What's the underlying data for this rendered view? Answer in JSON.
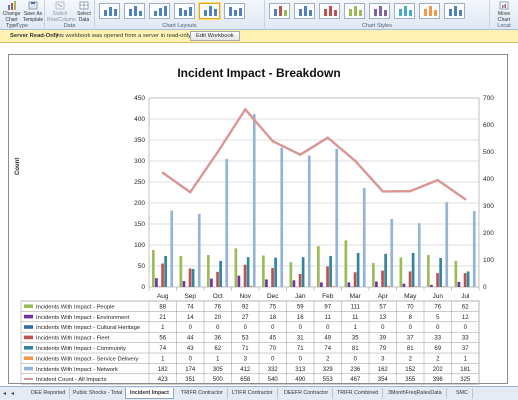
{
  "ribbon": {
    "buttons": {
      "change_chart_type": "Change Chart Type",
      "save_as_template": "Save As Template",
      "switch_row_column": "Switch Row/Column",
      "select_data": "Select Data",
      "move_chart": "Move Chart"
    },
    "groups": {
      "type": "Type",
      "data": "Data",
      "chart_layouts": "Chart Layouts",
      "chart_styles": "Chart Styles",
      "location": "Locat"
    }
  },
  "notice": {
    "title": "Server Read-Only",
    "text": "This workbook was opened from a server in read-only mode.",
    "button": "Edit Workbook"
  },
  "chart_data": {
    "type": "bar",
    "title": "Incident Impact - Breakdown",
    "ylabel": "Count",
    "ylim": [
      0,
      450
    ],
    "y2lim": [
      0,
      700
    ],
    "yticks": [
      "0",
      "50",
      "100",
      "150",
      "200",
      "250",
      "300",
      "350",
      "400",
      "450"
    ],
    "y2ticks": [
      "0",
      "100",
      "200",
      "300",
      "400",
      "500",
      "600",
      "700"
    ],
    "categories": [
      "Aug",
      "Sep",
      "Oct",
      "Nov",
      "Dec",
      "Jan",
      "Feb",
      "Mar",
      "Apr",
      "May",
      "Jun",
      "Jul"
    ],
    "series": [
      {
        "name": "Incidents With Impact - People",
        "color": "#9bbb59",
        "values": [
          88,
          74,
          76,
          92,
          75,
          59,
          97,
          111,
          57,
          70,
          76,
          62
        ]
      },
      {
        "name": "Incidents With Impact - Environment",
        "color": "#7030a0",
        "values": [
          21,
          14,
          20,
          27,
          18,
          16,
          11,
          11,
          13,
          8,
          5,
          12
        ]
      },
      {
        "name": "Incidents With Impact - Cultural Heritage",
        "color": "#2f6fa8",
        "values": [
          1,
          0,
          0,
          0,
          0,
          0,
          0,
          1,
          0,
          0,
          0,
          0
        ]
      },
      {
        "name": "Incidents With Impact - Fleet",
        "color": "#c0504d",
        "values": [
          56,
          44,
          36,
          53,
          45,
          31,
          49,
          35,
          39,
          37,
          33,
          33
        ]
      },
      {
        "name": "Incidents With Impact - Community",
        "color": "#31859c",
        "values": [
          74,
          43,
          62,
          71,
          70,
          71,
          74,
          81,
          79,
          81,
          69,
          37
        ]
      },
      {
        "name": "Incidents With Impact - Service Delivery",
        "color": "#f79646",
        "values": [
          1,
          0,
          1,
          3,
          0,
          0,
          2,
          0,
          3,
          2,
          2,
          1
        ]
      },
      {
        "name": "Incidents With Impact - Network",
        "color": "#95b3d7",
        "values": [
          182,
          174,
          305,
          412,
          332,
          313,
          329,
          236,
          162,
          152,
          202,
          181
        ]
      },
      {
        "name": "Incident Count - All Impacts",
        "color": "#d99694",
        "axis": "secondary",
        "line": true,
        "values": [
          423,
          351,
          500,
          658,
          540,
          490,
          553,
          467,
          354,
          355,
          396,
          325
        ]
      }
    ]
  },
  "tabs": [
    "DEE Reported",
    "Public Shocks - Total",
    "Incident Impact",
    "TRIFR Contractor",
    "LTIFR Contractor",
    "DEEFR Contractor",
    "TRIFR Combined",
    "3MonthFreqRatesData",
    "SMC"
  ],
  "active_tab": "Incident Impact"
}
